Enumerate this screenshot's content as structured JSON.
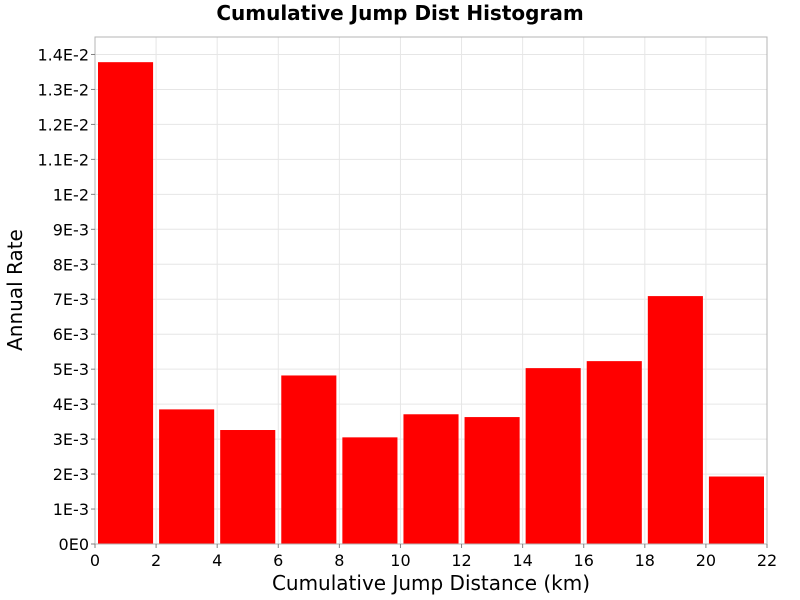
{
  "chart_data": {
    "type": "bar",
    "title": "Cumulative Jump Dist Histogram",
    "xlabel": "Cumulative Jump Distance (km)",
    "ylabel": "Annual Rate",
    "xlim": [
      0,
      22
    ],
    "ylim": [
      0,
      0.0145
    ],
    "grid": true,
    "colors": {
      "bar": "#ff0000",
      "grid": "#e6e6e6",
      "frame": "#b4b4b4"
    },
    "x_ticks": [
      {
        "value": 0,
        "label": "0"
      },
      {
        "value": 2,
        "label": "2"
      },
      {
        "value": 4,
        "label": "4"
      },
      {
        "value": 6,
        "label": "6"
      },
      {
        "value": 8,
        "label": "8"
      },
      {
        "value": 10,
        "label": "10"
      },
      {
        "value": 12,
        "label": "12"
      },
      {
        "value": 14,
        "label": "14"
      },
      {
        "value": 16,
        "label": "16"
      },
      {
        "value": 18,
        "label": "18"
      },
      {
        "value": 20,
        "label": "20"
      },
      {
        "value": 22,
        "label": "22"
      }
    ],
    "y_ticks": [
      {
        "value": 0,
        "label": "0E0"
      },
      {
        "value": 0.001,
        "label": "1E-3"
      },
      {
        "value": 0.002,
        "label": "2E-3"
      },
      {
        "value": 0.003,
        "label": "3E-3"
      },
      {
        "value": 0.004,
        "label": "4E-3"
      },
      {
        "value": 0.005,
        "label": "5E-3"
      },
      {
        "value": 0.006,
        "label": "6E-3"
      },
      {
        "value": 0.007,
        "label": "7E-3"
      },
      {
        "value": 0.008,
        "label": "8E-3"
      },
      {
        "value": 0.009,
        "label": "9E-3"
      },
      {
        "value": 0.01,
        "label": "1E-2"
      },
      {
        "value": 0.011,
        "label": "1.1E-2"
      },
      {
        "value": 0.012,
        "label": "1.2E-2"
      },
      {
        "value": 0.013,
        "label": "1.3E-2"
      },
      {
        "value": 0.014,
        "label": "1.4E-2"
      }
    ],
    "bin_width": 2,
    "bins": [
      {
        "x_start": 0,
        "x_end": 2,
        "value": 0.01378
      },
      {
        "x_start": 2,
        "x_end": 4,
        "value": 0.00385
      },
      {
        "x_start": 4,
        "x_end": 6,
        "value": 0.00326
      },
      {
        "x_start": 6,
        "x_end": 8,
        "value": 0.00482
      },
      {
        "x_start": 8,
        "x_end": 10,
        "value": 0.00305
      },
      {
        "x_start": 10,
        "x_end": 12,
        "value": 0.00371
      },
      {
        "x_start": 12,
        "x_end": 14,
        "value": 0.00363
      },
      {
        "x_start": 14,
        "x_end": 16,
        "value": 0.00503
      },
      {
        "x_start": 16,
        "x_end": 18,
        "value": 0.00523
      },
      {
        "x_start": 18,
        "x_end": 20,
        "value": 0.00709
      },
      {
        "x_start": 20,
        "x_end": 22,
        "value": 0.00193
      }
    ]
  }
}
